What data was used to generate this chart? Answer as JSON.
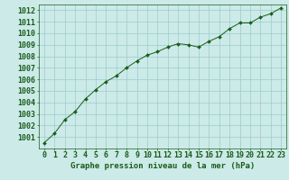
{
  "x": [
    0,
    1,
    2,
    3,
    4,
    5,
    6,
    7,
    8,
    9,
    10,
    11,
    12,
    13,
    14,
    15,
    16,
    17,
    18,
    19,
    20,
    21,
    22,
    23
  ],
  "y": [
    1000.5,
    1001.3,
    1002.5,
    1003.2,
    1004.3,
    1005.1,
    1005.8,
    1006.3,
    1007.0,
    1007.6,
    1008.1,
    1008.4,
    1008.8,
    1009.1,
    1009.0,
    1008.8,
    1009.3,
    1009.7,
    1010.4,
    1010.9,
    1010.9,
    1011.4,
    1011.7,
    1012.2
  ],
  "xlabel": "Graphe pression niveau de la mer (hPa)",
  "xlim": [
    -0.5,
    23.5
  ],
  "ylim": [
    1000.0,
    1012.5
  ],
  "yticks": [
    1001,
    1002,
    1003,
    1004,
    1005,
    1006,
    1007,
    1008,
    1009,
    1010,
    1011,
    1012
  ],
  "xticks": [
    0,
    1,
    2,
    3,
    4,
    5,
    6,
    7,
    8,
    9,
    10,
    11,
    12,
    13,
    14,
    15,
    16,
    17,
    18,
    19,
    20,
    21,
    22,
    23
  ],
  "line_color": "#1a5c1a",
  "marker_color": "#1a5c1a",
  "bg_color": "#cceae8",
  "grid_color": "#99cccc",
  "text_color": "#1a5c1a",
  "xlabel_fontsize": 6.5,
  "tick_fontsize": 6.0
}
